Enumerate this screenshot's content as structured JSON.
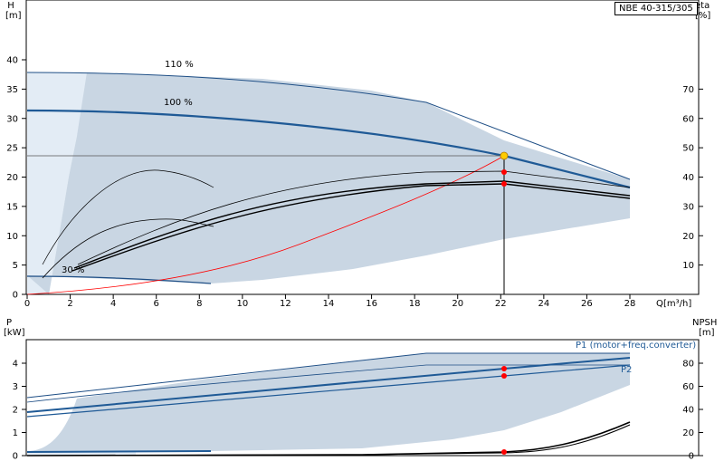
{
  "model": "NBE 40-315/305",
  "colors": {
    "band": "#c9d6e3",
    "band_light": "#e3ecf5",
    "curve": "#1f5a96",
    "curve_thin": "#1f4f86",
    "system": "#ff0000",
    "duty_point": "#ff0000",
    "duty_point_top": "#ffcc00",
    "frame": "#000000"
  },
  "top_chart": {
    "y_label": "H",
    "y_unit": "[m]",
    "y2_label": "eta",
    "y2_unit": "[%]",
    "x_label": "Q",
    "x_unit": "[m³/h]",
    "x_ticks": [
      "0",
      "2",
      "4",
      "6",
      "8",
      "10",
      "12",
      "14",
      "16",
      "18",
      "20",
      "22",
      "24",
      "26",
      "28"
    ],
    "y_ticks": [
      "0",
      "5",
      "10",
      "15",
      "20",
      "25",
      "30",
      "35",
      "40"
    ],
    "y2_ticks": [
      "10",
      "20",
      "30",
      "40",
      "50",
      "60",
      "70"
    ],
    "curve_labels": {
      "max": "110 %",
      "nominal": "100 %",
      "min": "30 %"
    }
  },
  "bottom_chart": {
    "y_label": "P",
    "y_unit": "[kW]",
    "y2_label": "NPSH",
    "y2_unit": "[m]",
    "y_ticks": [
      "0",
      "1",
      "2",
      "3",
      "4"
    ],
    "y2_ticks": [
      "0",
      "20",
      "40",
      "60",
      "80"
    ],
    "series_labels": {
      "p1": "P1 (motor+freq.converter)",
      "p2": "P2"
    }
  },
  "chart_data": {
    "type": "line",
    "title": "NBE 40-315/305",
    "head_chart": {
      "xlabel": "Q [m³/h]",
      "ylabel": "H [m]",
      "y2label": "eta [%]",
      "xlim": [
        0,
        28
      ],
      "ylim": [
        0,
        40
      ],
      "y2lim": [
        0,
        80
      ],
      "series": [
        {
          "name": "110 %",
          "x": [
            0,
            4,
            10,
            16,
            18.5,
            22,
            28
          ],
          "y": [
            37.6,
            37.5,
            36,
            33.5,
            32.5,
            27,
            19.2
          ]
        },
        {
          "name": "100 %",
          "x": [
            0,
            4,
            10,
            16,
            22.2,
            28
          ],
          "y": [
            31.2,
            31.2,
            30,
            27.5,
            23.7,
            18.2
          ]
        },
        {
          "name": "30 %",
          "x": [
            0,
            3,
            6,
            8.6
          ],
          "y": [
            2.9,
            2.9,
            2.4,
            1.7
          ]
        },
        {
          "x": [
            0,
            4,
            8,
            12,
            16,
            20,
            22.2,
            28
          ],
          "y": [
            0,
            0.9,
            3.1,
            6.9,
            12.1,
            18.9,
            23.6,
            23.6
          ]
        }
      ],
      "efficiency_series": [
        {
          "x": [
            2.2,
            6,
            10,
            14,
            18,
            22.2,
            28
          ],
          "y": [
            8,
            21,
            29,
            35,
            38.5,
            38,
            33.5
          ]
        },
        {
          "x": [
            2.4,
            6,
            10,
            14,
            18,
            22.2,
            28
          ],
          "y": [
            9,
            22,
            30,
            36,
            40,
            40,
            34.5
          ]
        },
        {
          "x": [
            2.8,
            6,
            10,
            14,
            18,
            22.2,
            28
          ],
          "y": [
            10,
            24,
            33,
            39,
            42,
            42,
            37
          ]
        },
        {
          "x": [
            0.8,
            3,
            5,
            7,
            8.5
          ],
          "y": [
            11,
            21.5,
            26,
            25.5,
            23
          ]
        },
        {
          "x": [
            0.8,
            3,
            5,
            6.5,
            8.5
          ],
          "y": [
            10,
            33,
            41.5,
            41.7,
            36.5
          ]
        }
      ],
      "duty_point": {
        "q": 22.2,
        "h": 23.7,
        "eta": 41.5,
        "eta2": 37.5
      }
    },
    "power_chart": {
      "xlabel": "Q [m³/h]",
      "ylabel": "P [kW]",
      "y2label": "NPSH [m]",
      "xlim": [
        0,
        28
      ],
      "ylim": [
        0,
        5
      ],
      "y2lim": [
        0,
        100
      ],
      "series": [
        {
          "name": "P1 (motor+freq.converter)",
          "x": [
            0,
            28
          ],
          "y": [
            1.8,
            4.25
          ]
        },
        {
          "name": "P2",
          "x": [
            0,
            28
          ],
          "y": [
            1.65,
            3.9
          ]
        },
        {
          "x": [
            0,
            5,
            10,
            15,
            18.5,
            22.2,
            28
          ],
          "y": [
            2.5,
            3,
            3.45,
            4.05,
            4.5,
            4.5,
            4.5
          ]
        },
        {
          "x": [
            0,
            5,
            10,
            15,
            18.5,
            22.2,
            28
          ],
          "y": [
            2.35,
            2.85,
            3.3,
            3.8,
            4.05,
            4.05,
            4.05
          ]
        },
        {
          "x": [
            0,
            8.6
          ],
          "y": [
            0.1,
            0.15
          ]
        },
        {
          "x": [
            0,
            10,
            15,
            20,
            22.2,
            24,
            26,
            28
          ],
          "y": [
            0,
            0.03,
            0.05,
            0.1,
            0.15,
            0.3,
            0.7,
            1.5
          ]
        }
      ],
      "duty_points": [
        {
          "q": 22.2,
          "p": 3.75
        },
        {
          "q": 22.2,
          "p": 3.45
        },
        {
          "q": 22.2,
          "p": 0.15
        }
      ]
    }
  }
}
